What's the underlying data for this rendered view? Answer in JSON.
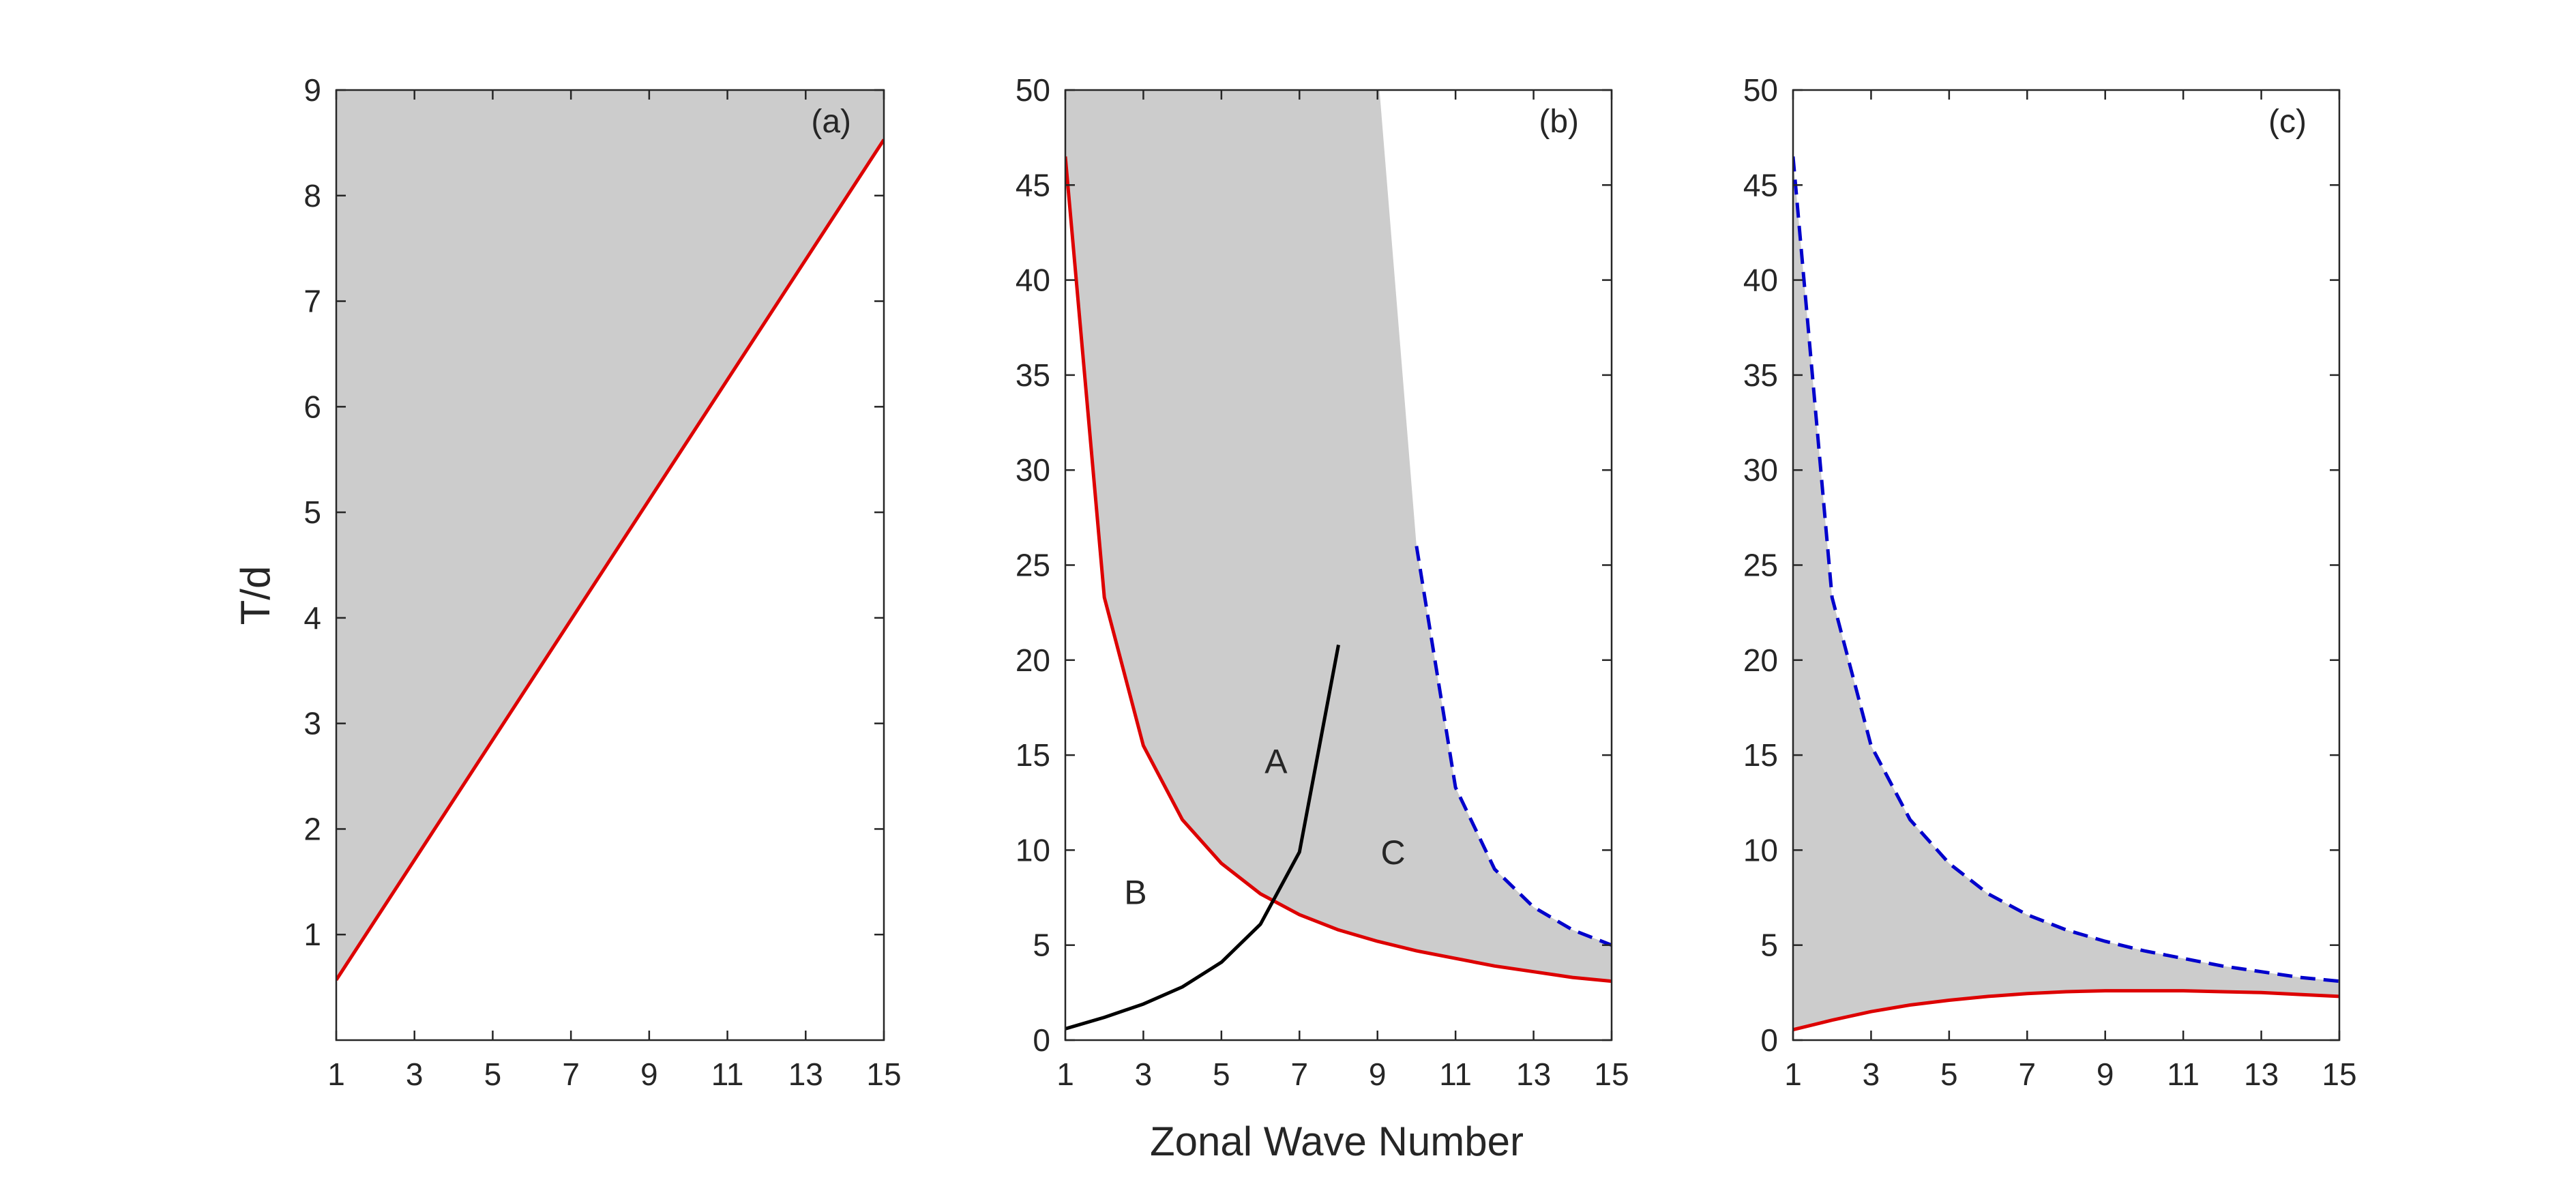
{
  "figure": {
    "xlabel": "Zonal Wave Number",
    "ylabel": "T/d"
  },
  "chart_data": [
    {
      "type": "line",
      "panel_label": "(a)",
      "xlabel": "",
      "ylabel": "T/d",
      "xlim": [
        1,
        15
      ],
      "ylim": [
        0,
        9
      ],
      "xticks": [
        1,
        3,
        5,
        7,
        9,
        11,
        13,
        15
      ],
      "yticks": [
        1,
        2,
        3,
        4,
        5,
        6,
        7,
        8,
        9
      ],
      "shaded_regions": [
        {
          "fill": "#cccccc",
          "description_points": [
            [
              1,
              0.57
            ],
            [
              15,
              8.53
            ],
            [
              15,
              9
            ],
            [
              1,
              9
            ]
          ]
        }
      ],
      "series": [
        {
          "color": "#dd0000",
          "dash": "solid",
          "x": [
            1,
            15
          ],
          "y": [
            0.57,
            8.53
          ]
        }
      ],
      "annotations": []
    },
    {
      "type": "line",
      "panel_label": "(b)",
      "xlabel": "Zonal Wave Number",
      "ylabel": "",
      "xlim": [
        1,
        15
      ],
      "ylim": [
        0,
        50
      ],
      "xticks": [
        1,
        3,
        5,
        7,
        9,
        11,
        13,
        15
      ],
      "yticks": [
        0,
        5,
        10,
        15,
        20,
        25,
        30,
        35,
        40,
        45,
        50
      ],
      "shaded_regions": [
        {
          "fill": "#cccccc",
          "description_points": [
            [
              1,
              0
            ],
            [
              1,
              50
            ],
            [
              9.05,
              50
            ],
            [
              10,
              26
            ],
            [
              11,
              13.3
            ],
            [
              12,
              9
            ],
            [
              13,
              7
            ],
            [
              14,
              5.8
            ],
            [
              15,
              5
            ],
            [
              15,
              3.1
            ],
            [
              14,
              3.3
            ],
            [
              13,
              3.6
            ],
            [
              12,
              3.9
            ],
            [
              11,
              4.3
            ],
            [
              10,
              4.7
            ],
            [
              9,
              5.2
            ],
            [
              8,
              5.8
            ],
            [
              7,
              6.6
            ],
            [
              6,
              7.7
            ],
            [
              5,
              9.3
            ],
            [
              4,
              11.6
            ],
            [
              3,
              15.5
            ],
            [
              2,
              23.3
            ],
            [
              1,
              46.5
            ],
            [
              1,
              0
            ]
          ]
        }
      ],
      "series": [
        {
          "color": "#dd0000",
          "dash": "solid",
          "x": [
            1,
            2,
            3,
            4,
            5,
            6,
            7,
            8,
            9,
            10,
            11,
            12,
            13,
            14,
            15
          ],
          "y": [
            46.5,
            23.3,
            15.5,
            11.6,
            9.3,
            7.7,
            6.6,
            5.8,
            5.2,
            4.7,
            4.3,
            3.9,
            3.6,
            3.3,
            3.1
          ]
        },
        {
          "color": "#000000",
          "dash": "solid",
          "x": [
            1,
            2,
            3,
            4,
            5,
            6,
            7,
            8
          ],
          "y": [
            0.6,
            1.2,
            1.9,
            2.8,
            4.1,
            6.1,
            9.9,
            20.8
          ]
        },
        {
          "color": "#0000cc",
          "dash": "dashed",
          "x": [
            10,
            11,
            12,
            13,
            14,
            15
          ],
          "y": [
            26,
            13.3,
            9,
            7,
            5.8,
            5
          ]
        }
      ],
      "annotations": [
        {
          "text": "A",
          "x": 6.4,
          "y": 14.7
        },
        {
          "text": "B",
          "x": 2.8,
          "y": 7.8
        },
        {
          "text": "C",
          "x": 9.4,
          "y": 9.9
        }
      ]
    },
    {
      "type": "line",
      "panel_label": "(c)",
      "xlabel": "",
      "ylabel": "",
      "xlim": [
        1,
        15
      ],
      "ylim": [
        0,
        50
      ],
      "xticks": [
        1,
        3,
        5,
        7,
        9,
        11,
        13,
        15
      ],
      "yticks": [
        0,
        5,
        10,
        15,
        20,
        25,
        30,
        35,
        40,
        45,
        50
      ],
      "shaded_regions": [
        {
          "fill": "#cccccc",
          "description_points": [
            [
              1,
              46.5
            ],
            [
              2,
              23.3
            ],
            [
              3,
              15.5
            ],
            [
              4,
              11.6
            ],
            [
              5,
              9.3
            ],
            [
              6,
              7.7
            ],
            [
              7,
              6.6
            ],
            [
              8,
              5.8
            ],
            [
              9,
              5.2
            ],
            [
              10,
              4.7
            ],
            [
              11,
              4.3
            ],
            [
              12,
              3.9
            ],
            [
              13,
              3.6
            ],
            [
              14,
              3.3
            ],
            [
              15,
              3.1
            ],
            [
              15,
              2.3
            ],
            [
              14,
              2.4
            ],
            [
              13,
              2.5
            ],
            [
              12,
              2.55
            ],
            [
              11,
              2.6
            ],
            [
              10,
              2.6
            ],
            [
              9,
              2.6
            ],
            [
              8,
              2.55
            ],
            [
              7,
              2.45
            ],
            [
              6,
              2.3
            ],
            [
              5,
              2.1
            ],
            [
              4,
              1.85
            ],
            [
              3,
              1.5
            ],
            [
              2,
              1.05
            ],
            [
              1,
              0.55
            ]
          ]
        }
      ],
      "series": [
        {
          "color": "#0000cc",
          "dash": "dashed",
          "x": [
            1,
            2,
            3,
            4,
            5,
            6,
            7,
            8,
            9,
            10,
            11,
            12,
            13,
            14,
            15
          ],
          "y": [
            46.5,
            23.3,
            15.5,
            11.6,
            9.3,
            7.7,
            6.6,
            5.8,
            5.2,
            4.7,
            4.3,
            3.9,
            3.6,
            3.3,
            3.1
          ]
        },
        {
          "color": "#dd0000",
          "dash": "solid",
          "x": [
            1,
            2,
            3,
            4,
            5,
            6,
            7,
            8,
            9,
            10,
            11,
            12,
            13,
            14,
            15
          ],
          "y": [
            0.55,
            1.05,
            1.5,
            1.85,
            2.1,
            2.3,
            2.45,
            2.55,
            2.6,
            2.6,
            2.6,
            2.55,
            2.5,
            2.4,
            2.3
          ]
        }
      ],
      "annotations": []
    }
  ]
}
